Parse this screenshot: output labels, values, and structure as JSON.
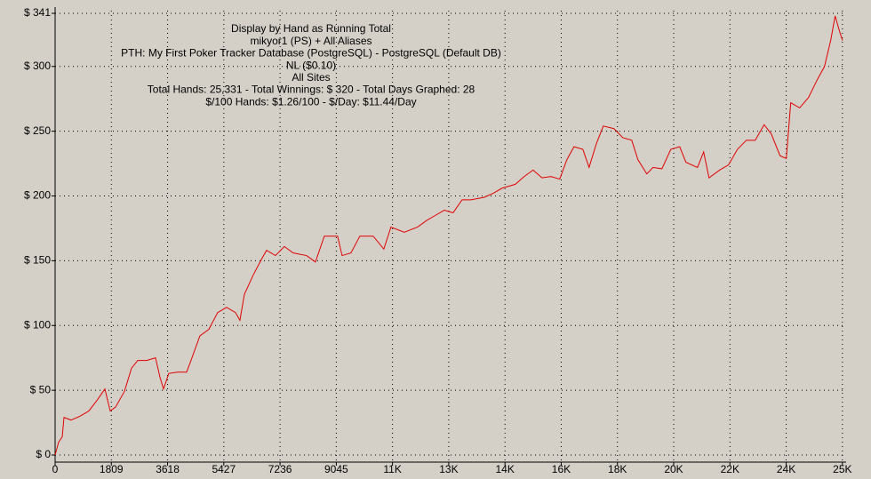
{
  "chart_data": {
    "type": "line",
    "annotations": [
      "Display by Hand as Running Total",
      "mikyor1 (PS) + All Aliases",
      "PTH: My First Poker Tracker Database (PostgreSQL) - PostgreSQL (Default DB)",
      "NL ($0.10)",
      "All Sites",
      "Total Hands: 25,331 - Total Winnings: $ 320 - Total Days Graphed: 28",
      "$/100 Hands: $1.26/100 - $/Day: $11.44/Day"
    ],
    "x": [
      0,
      114,
      229,
      286,
      515,
      801,
      1086,
      1372,
      1601,
      1772,
      1944,
      2229,
      2458,
      2658,
      2944,
      3230,
      3373,
      3487,
      3658,
      3944,
      4230,
      4372,
      4658,
      4944,
      5230,
      5516,
      5802,
      5945,
      6088,
      6373,
      6659,
      6802,
      7088,
      7374,
      7660,
      8088,
      8374,
      8660,
      9088,
      9231,
      9517,
      9803,
      10231,
      10575,
      10803,
      11232,
      11661,
      11946,
      12232,
      12518,
      12804,
      13090,
      13376,
      13804,
      14090,
      14376,
      14805,
      15090,
      15376,
      15662,
      15948,
      16233,
      16462,
      16691,
      16977,
      17177,
      17406,
      17634,
      17977,
      18263,
      18549,
      18748,
      19034,
      19234,
      19520,
      19806,
      20092,
      20292,
      20663,
      20863,
      21035,
      21378,
      21664,
      21950,
      22236,
      22521,
      22807,
      23036,
      23321,
      23521,
      23664,
      23950,
      24236,
      24522,
      24750,
      24949,
      25092,
      25235,
      25331
    ],
    "values": [
      0,
      10,
      14,
      29,
      27,
      30,
      34,
      43,
      51,
      34,
      37,
      49,
      67,
      73,
      73,
      75,
      60,
      51,
      63,
      64,
      64,
      73,
      92,
      97,
      110,
      114,
      110,
      104,
      124,
      139,
      152,
      158,
      154,
      161,
      156,
      154,
      149,
      169,
      169,
      154,
      156,
      169,
      169,
      159,
      176,
      172,
      176,
      181,
      185,
      189,
      187,
      197,
      197,
      199,
      202,
      206,
      209,
      215,
      220,
      214,
      215,
      213,
      228,
      238,
      236,
      222,
      240,
      254,
      252,
      245,
      243,
      228,
      217,
      222,
      221,
      236,
      238,
      226,
      222,
      234,
      214,
      220,
      224,
      236,
      243,
      243,
      255,
      248,
      231,
      229,
      272,
      268,
      276,
      290,
      300,
      320,
      339,
      327,
      320
    ],
    "color": "#e00000",
    "xlim": [
      0,
      25331
    ],
    "xticks": [
      0,
      1809,
      3618,
      5427,
      7236,
      9045,
      {
        "value": 10854,
        "label": "11K"
      },
      {
        "value": 12663,
        "label": "13K"
      },
      {
        "value": 14472,
        "label": "14K"
      },
      {
        "value": 16281,
        "label": "16K"
      },
      {
        "value": 18090,
        "label": "18K"
      },
      {
        "value": 19899,
        "label": "20K"
      },
      {
        "value": 21708,
        "label": "22K"
      },
      {
        "value": 23517,
        "label": "24K"
      },
      {
        "value": 25326,
        "label": "25K"
      }
    ],
    "ylim": [
      0,
      341
    ],
    "yticks": [
      {
        "value": 0,
        "label": "$ 0"
      },
      {
        "value": 50,
        "label": "$ 50"
      },
      {
        "value": 100,
        "label": "$ 100"
      },
      {
        "value": 150,
        "label": "$ 150"
      },
      {
        "value": 200,
        "label": "$ 200"
      },
      {
        "value": 250,
        "label": "$ 250"
      },
      {
        "value": 300,
        "label": "$ 300"
      },
      {
        "value": 341,
        "label": "$ 341"
      }
    ],
    "grid": true
  }
}
